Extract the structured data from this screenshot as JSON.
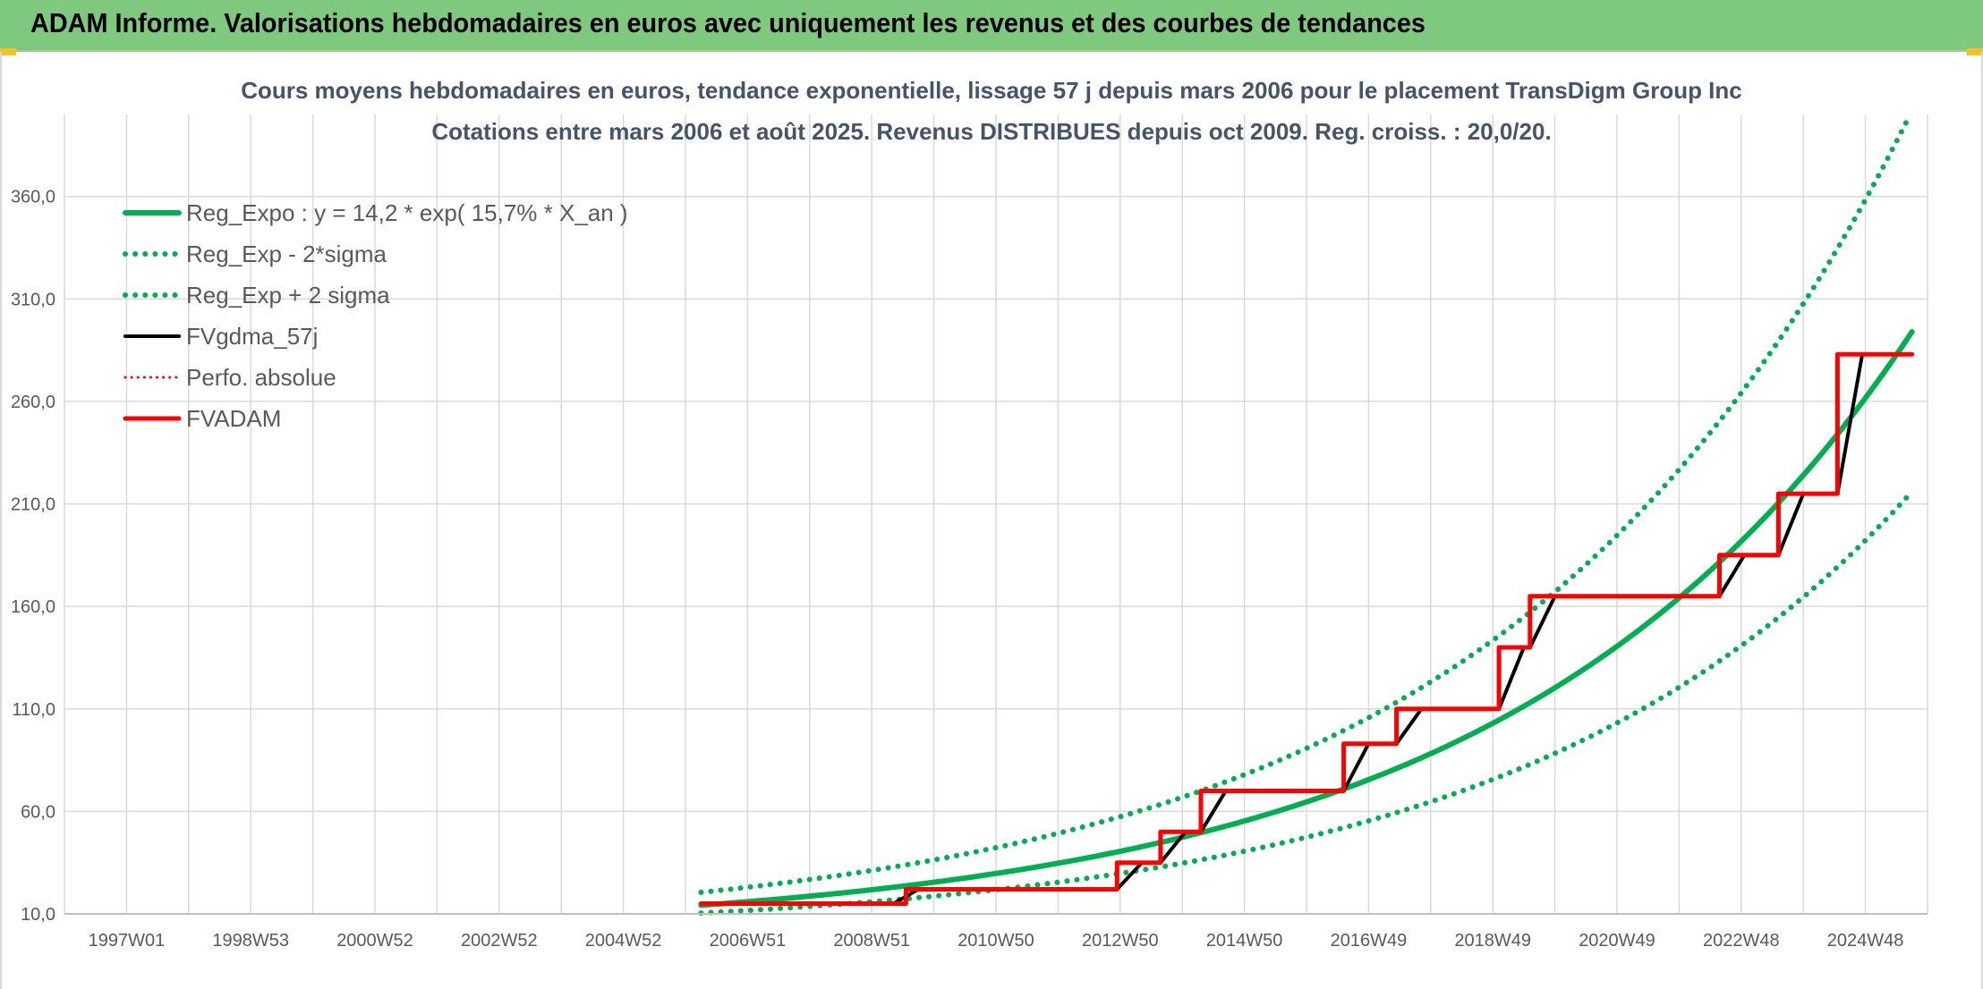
{
  "header": {
    "title": "ADAM Informe. Valorisations hebdomadaires en euros avec uniquement les revenus et des courbes de tendances"
  },
  "colors": {
    "header_bg": "#7fc97f",
    "green": "#00b050",
    "black": "#000000",
    "red": "#ff0000",
    "grid": "#d9d9d9",
    "title_text": "#44546a"
  },
  "chart_data": {
    "type": "line",
    "title": "Cours moyens hebdomadaires en euros, tendance exponentielle, lissage 57 j depuis mars 2006 pour le placement TransDigm Group Inc",
    "subtitle": "Cotations entre mars 2006 et août 2025. Revenus DISTRIBUES depuis oct 2009. Reg. croiss. : 20,0/20.",
    "xlabel": "",
    "ylabel": "",
    "x_tick_labels": [
      "1997W01",
      "1998W53",
      "2000W52",
      "2002W52",
      "2004W52",
      "2006W51",
      "2008W51",
      "2010W50",
      "2012W50",
      "2014W50",
      "2016W49",
      "2018W49",
      "2020W49",
      "2022W48",
      "2024W48"
    ],
    "x_tick_years": [
      1997.0,
      1999.0,
      2001.0,
      2003.0,
      2005.0,
      2007.0,
      2009.0,
      2011.0,
      2013.0,
      2015.0,
      2017.0,
      2019.0,
      2021.0,
      2023.0,
      2025.0
    ],
    "xlim": [
      1996.0,
      2026.0
    ],
    "y_tick_labels": [
      "10,0",
      "60,0",
      "110,0",
      "160,0",
      "210,0",
      "260,0",
      "310,0",
      "360,0"
    ],
    "y_ticks": [
      10,
      60,
      110,
      160,
      210,
      260,
      310,
      360
    ],
    "ylim": [
      10,
      400
    ],
    "grid": true,
    "legend_position": "top-left",
    "series": [
      {
        "name": "Reg_Expo : y = 14,2 * exp( 15,7% *  X_an )",
        "color": "#00b050",
        "style": "solid",
        "x": [
          2006.25,
          2008.0,
          2010.0,
          2012.0,
          2014.0,
          2016.0,
          2018.0,
          2020.0,
          2022.0,
          2024.0,
          2025.75
        ],
        "values": [
          14.2,
          18.7,
          25.5,
          34.7,
          47.4,
          64.6,
          88.1,
          120.1,
          163.8,
          223.5,
          294.0
        ]
      },
      {
        "name": "Reg_Exp - 2*sigma",
        "color": "#00b050",
        "style": "dotted",
        "x": [
          2006.25,
          2008.0,
          2010.0,
          2012.0,
          2014.0,
          2016.0,
          2018.0,
          2020.0,
          2022.0,
          2024.0,
          2025.75
        ],
        "values": [
          10.4,
          13.7,
          18.7,
          25.5,
          34.8,
          47.4,
          64.7,
          88.2,
          120.3,
          164.1,
          216.0
        ]
      },
      {
        "name": "Reg_Exp + 2 sigma",
        "color": "#00b050",
        "style": "dotted",
        "x": [
          2006.25,
          2008.0,
          2010.0,
          2012.0,
          2014.0,
          2016.0,
          2018.0,
          2020.0,
          2022.0,
          2024.0,
          2025.72
        ],
        "values": [
          20.5,
          27.0,
          36.8,
          50.1,
          68.4,
          93.2,
          127.0,
          173.3,
          236.4,
          322.5,
          400.0
        ]
      },
      {
        "name": "FVgdma_57j",
        "color": "#000000",
        "style": "solid",
        "x": [
          2006.25,
          2009.35,
          2009.75,
          2012.95,
          2013.35,
          2013.65,
          2014.05,
          2014.3,
          2014.7,
          2016.6,
          2017.0,
          2017.45,
          2017.85,
          2019.1,
          2019.5,
          2019.6,
          2020.0,
          2022.65,
          2023.05,
          2023.6,
          2024.0,
          2024.55,
          2024.95,
          2025.75
        ],
        "values": [
          15.0,
          15.0,
          22.0,
          22.0,
          35.0,
          35.0,
          50.0,
          50.0,
          70.0,
          70.0,
          93.0,
          93.0,
          110.0,
          110.0,
          140.0,
          140.0,
          165.0,
          165.0,
          185.0,
          185.0,
          215.0,
          215.0,
          283.0,
          283.0
        ]
      },
      {
        "name": "Perfo. absolue",
        "color": "#ff0000",
        "style": "dotted",
        "x": [],
        "values": []
      },
      {
        "name": "FVADAM",
        "color": "#ff0000",
        "style": "solid",
        "x": [
          2006.25,
          2009.55,
          2009.55,
          2012.95,
          2012.95,
          2013.65,
          2013.65,
          2014.3,
          2014.3,
          2016.6,
          2016.6,
          2017.45,
          2017.45,
          2019.1,
          2019.1,
          2019.6,
          2019.6,
          2022.65,
          2022.65,
          2023.6,
          2023.6,
          2024.55,
          2024.55,
          2025.75
        ],
        "values": [
          15.0,
          15.0,
          22.0,
          22.0,
          35.0,
          35.0,
          50.0,
          50.0,
          70.0,
          70.0,
          93.0,
          93.0,
          110.0,
          110.0,
          140.0,
          140.0,
          165.0,
          165.0,
          185.0,
          185.0,
          215.0,
          215.0,
          283.0,
          283.0
        ]
      }
    ]
  }
}
